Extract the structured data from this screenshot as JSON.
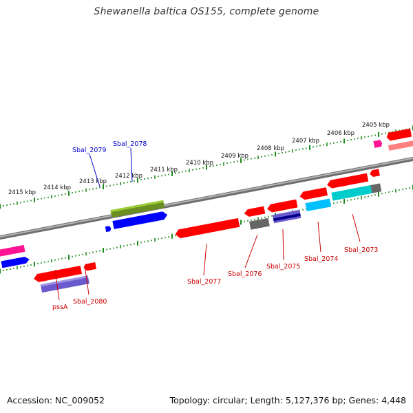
{
  "title": "Shewanella baltica OS155, complete genome",
  "footer": {
    "accession": "Accession: NC_009052",
    "summary": "Topology: circular; Length: 5,127,376 bp; Genes: 4,448"
  },
  "colors": {
    "backbone": "#808080",
    "tick": "#1a8a1a",
    "forward_label": "#0000cc",
    "reverse_label": "#cc0000",
    "red": "#ff0000",
    "blue": "#0000ff",
    "olive": "#6b8e23",
    "slate": "#6a5acd",
    "cyan": "#00bfff",
    "teal": "#00cccc",
    "magenta": "#ff1493",
    "gray": "#666666",
    "navy": "#00008b",
    "salmon": "#ff8080"
  },
  "scale": {
    "unit": "kbp",
    "labels": [
      "2415 kbp",
      "2414 kbp",
      "2413 kbp",
      "2412 kbp",
      "2411 kbp",
      "2410 kbp",
      "2409 kbp",
      "2408 kbp",
      "2407 kbp",
      "2406 kbp",
      "2405 kbp"
    ]
  },
  "gene_labels": {
    "forward": [
      "Sbal_2079",
      "Sbal_2078"
    ],
    "reverse": [
      "pssA",
      "Sbal_2080",
      "Sbal_2077",
      "Sbal_2076",
      "Sbal_2075",
      "Sbal_2074",
      "Sbal_2073"
    ]
  }
}
